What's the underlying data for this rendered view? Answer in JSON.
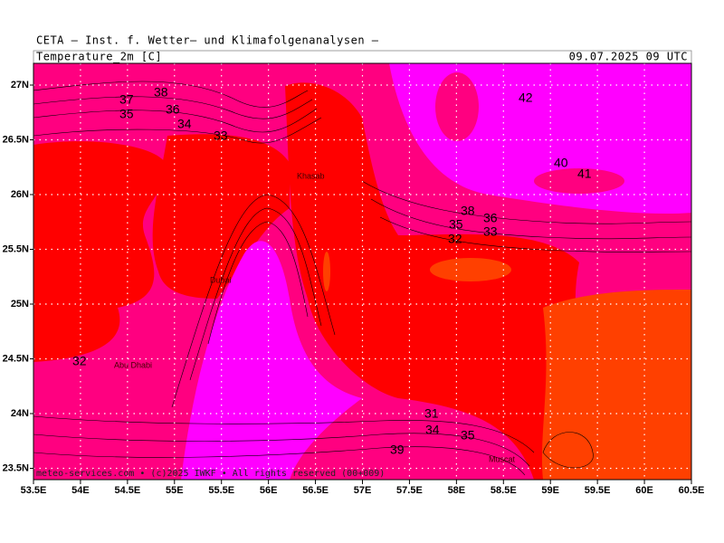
{
  "header": {
    "title": "CETA — Inst. f. Wetter— und Klimafolgenanalysen —",
    "variable": "Temperature_2m [C]",
    "valid_time": "09.07.2025 09 UTC"
  },
  "footer": "meteo-services.com • (c)2025 IWKF • All rights reserved (00+009)",
  "x_axis_labels": [
    "53.5E",
    "54E",
    "54.5E",
    "55E",
    "55.5E",
    "56E",
    "56.5E",
    "57E",
    "57.5E",
    "58E",
    "58.5E",
    "59E",
    "59.5E",
    "60E",
    "60.5E"
  ],
  "y_axis_labels": [
    "27N",
    "26.5N",
    "26N",
    "25.5N",
    "25N",
    "24.5N",
    "24N",
    "23.5N"
  ],
  "places": [
    "Khasab",
    "Dubai",
    "Abu Dhabi",
    "Muscat"
  ],
  "contour_labels": [
    37,
    38,
    35,
    36,
    34,
    33,
    42,
    40,
    41,
    38,
    36,
    35,
    33,
    32,
    32,
    31,
    34,
    35,
    39
  ]
}
